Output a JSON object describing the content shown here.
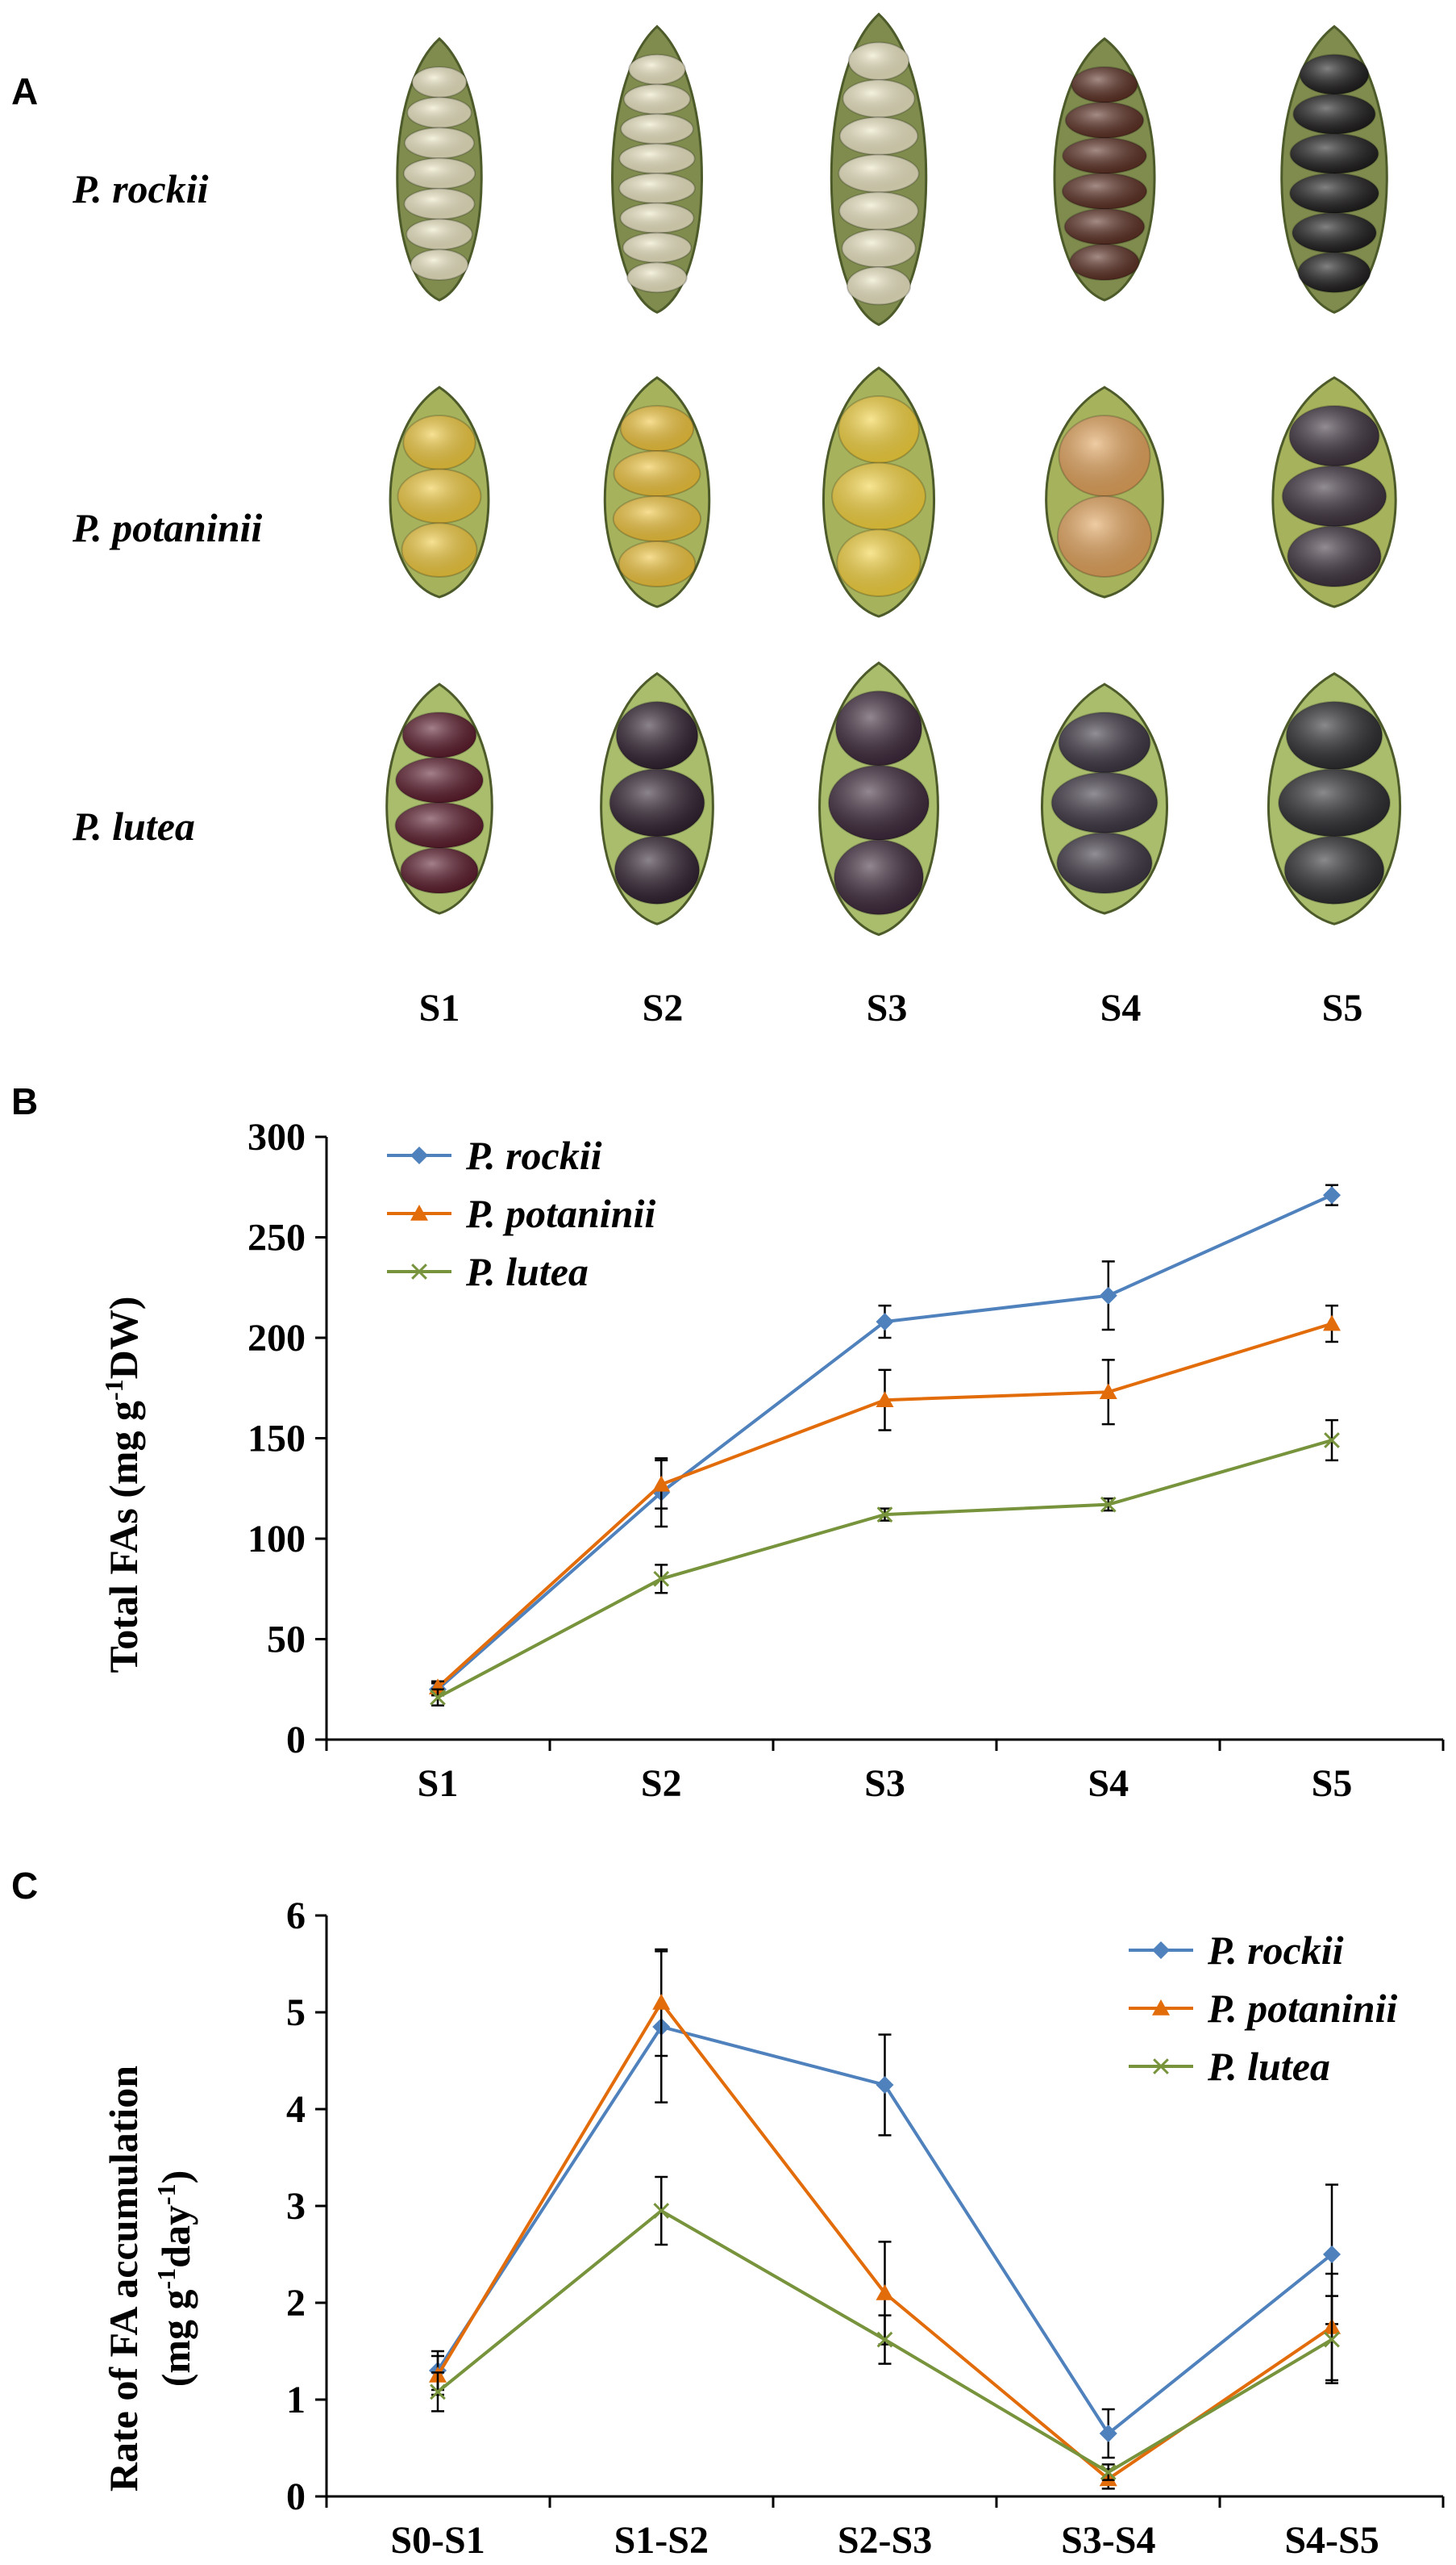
{
  "panels": {
    "a": "A",
    "b": "B",
    "c": "C"
  },
  "photo_grid": {
    "rows": [
      {
        "species": "P. rockii",
        "seed": "#ece6c2",
        "pod": "#7f8c4e"
      },
      {
        "species": "P. potaninii",
        "seed": "#f0c93c",
        "pod": "#a7b35c"
      },
      {
        "species": "P. lutea",
        "seed": "#3a2536",
        "pod": "#a9bd6d"
      }
    ],
    "stages": [
      "S1",
      "S2",
      "S3",
      "S4",
      "S5"
    ],
    "colors": {
      "rockii": [
        "#ece6c2",
        "#ece6c2",
        "#ece6c2",
        "#5a2e22",
        "#1d1b1c"
      ],
      "potaninii": [
        "#f0c93c",
        "#f0c43a",
        "#f4d23c",
        "#e3a35a",
        "#3a2f3b"
      ],
      "lutea": [
        "#5a1a2b",
        "#2e1f2e",
        "#3b2638",
        "#3a3340",
        "#2a2a2e"
      ]
    }
  },
  "chart_data": [
    {
      "type": "line",
      "title": "",
      "xlabel": "",
      "ylabel": "Total FAs (mg g-1DW)",
      "ylabel_parts": {
        "main": "Total FAs (mg g",
        "sup": "-1",
        "tail": "DW)"
      },
      "categories": [
        "S1",
        "S2",
        "S3",
        "S4",
        "S5"
      ],
      "ylim": [
        0,
        300
      ],
      "yticks": [
        0,
        50,
        100,
        150,
        200,
        250,
        300
      ],
      "legend_position": "top-left",
      "series": [
        {
          "name": "P. rockii",
          "color": "#4f81bd",
          "marker": "diamond",
          "values": [
            25,
            123,
            208,
            221,
            271
          ],
          "errors": [
            3,
            17,
            8,
            17,
            5
          ]
        },
        {
          "name": "P. potaninii",
          "color": "#e36c0a",
          "marker": "triangle",
          "values": [
            26,
            127,
            169,
            173,
            207
          ],
          "errors": [
            3,
            12,
            15,
            16,
            9
          ]
        },
        {
          "name": "P. lutea",
          "color": "#77933c",
          "marker": "x",
          "values": [
            21,
            80,
            112,
            117,
            149
          ],
          "errors": [
            4,
            7,
            3,
            3,
            10
          ]
        }
      ]
    },
    {
      "type": "line",
      "title": "",
      "xlabel": "",
      "ylabel": "Rate of FA accumulation (mg g-1day-1)",
      "ylabel_parts": {
        "line1": "Rate of FA accumulation",
        "main": "(mg g",
        "sup1": "-1",
        "mid": "day",
        "sup2": "-1",
        "tail": ")"
      },
      "categories": [
        "S0-S1",
        "S1-S2",
        "S2-S3",
        "S3-S4",
        "S4-S5"
      ],
      "ylim": [
        0,
        6
      ],
      "yticks": [
        0,
        1,
        2,
        3,
        4,
        5,
        6
      ],
      "legend_position": "top-right",
      "series": [
        {
          "name": "P. rockii",
          "color": "#4f81bd",
          "marker": "diamond",
          "values": [
            1.3,
            4.85,
            4.25,
            0.65,
            2.5
          ],
          "errors": [
            0.2,
            0.78,
            0.52,
            0.25,
            0.72
          ]
        },
        {
          "name": "P. potaninii",
          "color": "#e36c0a",
          "marker": "triangle",
          "values": [
            1.25,
            5.1,
            2.1,
            0.18,
            1.75
          ],
          "errors": [
            0.2,
            0.55,
            0.53,
            0.1,
            0.55
          ]
        },
        {
          "name": "P. lutea",
          "color": "#77933c",
          "marker": "x",
          "values": [
            1.08,
            2.95,
            1.62,
            0.25,
            1.62
          ],
          "errors": [
            0.2,
            0.35,
            0.25,
            0.08,
            0.45
          ]
        }
      ]
    }
  ]
}
